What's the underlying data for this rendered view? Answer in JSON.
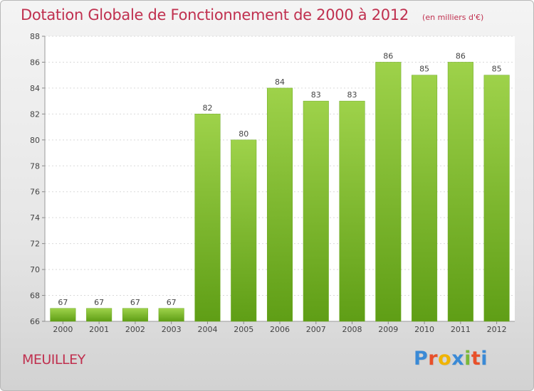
{
  "title": "Dotation Globale de Fonctionnement de 2000 à 2012",
  "subtitle": "(en milliers d'€)",
  "commune": "MEUILLEY",
  "logo": {
    "text": "Proxiti",
    "colors": [
      "#3a8ad6",
      "#e8502a",
      "#f0b400",
      "#3a8ad6",
      "#7ab83a",
      "#e8502a",
      "#3a8ad6"
    ]
  },
  "chart_data": {
    "type": "bar",
    "categories": [
      "2000",
      "2001",
      "2002",
      "2003",
      "2004",
      "2005",
      "2006",
      "2007",
      "2008",
      "2009",
      "2010",
      "2011",
      "2012"
    ],
    "values": [
      67,
      67,
      67,
      67,
      82,
      80,
      84,
      83,
      83,
      86,
      85,
      86,
      85
    ],
    "ylim": [
      66,
      88
    ],
    "yticks": [
      66,
      68,
      70,
      72,
      74,
      76,
      78,
      80,
      82,
      84,
      86,
      88
    ],
    "grid": true,
    "bar_color": "#7cbf2a"
  }
}
